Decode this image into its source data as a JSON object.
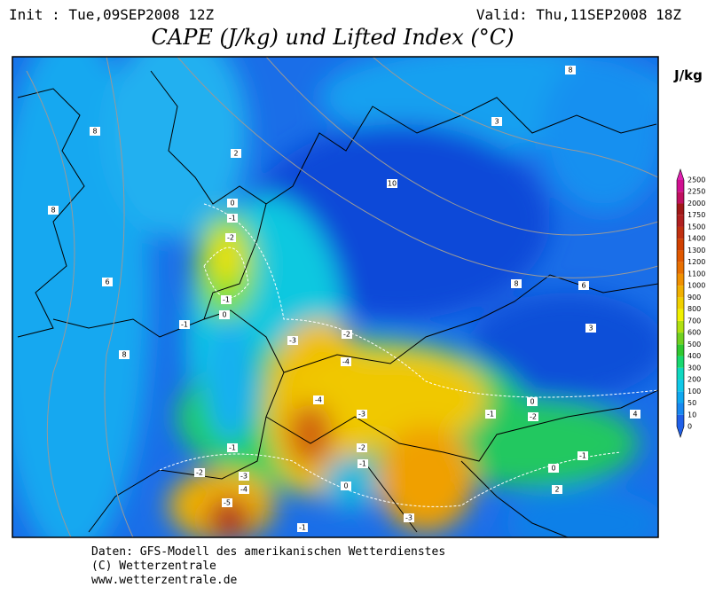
{
  "header": {
    "init": "Init : Tue,09SEP2008 12Z",
    "valid": "Valid: Thu,11SEP2008 18Z",
    "title": "CAPE (J/kg) und Lifted Index (°C)"
  },
  "colorbar": {
    "unit": "J/kg",
    "labels": [
      "0",
      "10",
      "50",
      "100",
      "200",
      "300",
      "400",
      "500",
      "600",
      "700",
      "800",
      "900",
      "1000",
      "1100",
      "1200",
      "1300",
      "1400",
      "1500",
      "1750",
      "2000",
      "2250",
      "2500"
    ],
    "colors": [
      "#2060e8",
      "#1888f0",
      "#10a8f0",
      "#10c8e8",
      "#10d8c0",
      "#18d870",
      "#30c830",
      "#70d020",
      "#b0e010",
      "#f0f000",
      "#f0d000",
      "#f0b000",
      "#f09000",
      "#e87000",
      "#e05800",
      "#d04000",
      "#c03010",
      "#b02020",
      "#a01818",
      "#c01060",
      "#d01090",
      "#e020b0"
    ]
  },
  "map": {
    "contour_labels": [
      "8",
      "3",
      "8",
      "2",
      "10",
      "8",
      "0",
      "-1",
      "-2",
      "6",
      "8",
      "6",
      "-1",
      "0",
      "-1",
      "3",
      "-3",
      "-2",
      "8",
      "-4",
      "-4",
      "-3",
      "-1",
      "0",
      "-2",
      "4",
      "-1",
      "-2",
      "-1",
      "-1",
      "0",
      "-2",
      "-3",
      "-4",
      "0",
      "2",
      "-5",
      "-3",
      "-1"
    ]
  },
  "footer": {
    "lines": [
      "Daten: GFS-Modell des amerikanischen Wetterdienstes",
      "(C) Wetterzentrale",
      "www.wetterzentrale.de"
    ]
  }
}
